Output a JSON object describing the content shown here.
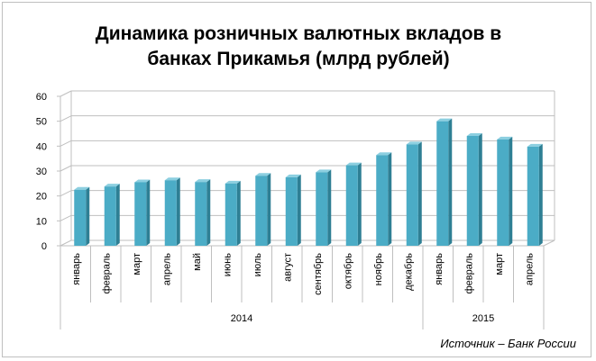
{
  "chart_data": {
    "type": "bar",
    "title_lines": [
      "Динамика розничных валютных вкладов в",
      "банках Прикамья (млрд рублей)"
    ],
    "categories": [
      "январь",
      "февраль",
      "март",
      "апрель",
      "май",
      "июнь",
      "июль",
      "август",
      "сентябрь",
      "октябрь",
      "ноябрь",
      "декабрь",
      "январь",
      "февраль",
      "март",
      "апрель"
    ],
    "values": [
      22.5,
      23.8,
      25.5,
      26.3,
      25.6,
      25.0,
      28.1,
      27.5,
      29.5,
      32.3,
      36.4,
      40.7,
      50.0,
      44.1,
      42.7,
      39.8
    ],
    "groups": [
      {
        "label": "2014",
        "count": 12
      },
      {
        "label": "2015",
        "count": 4
      }
    ],
    "ylim": [
      0,
      60
    ],
    "yticks": [
      0,
      10,
      20,
      30,
      40,
      50,
      60
    ],
    "bar_color": "#4bacc6",
    "bar_side_color": "#2e7f94",
    "bar_top_color": "#8ccfe0",
    "grid": true
  },
  "source_text": "Источник – Банк России"
}
